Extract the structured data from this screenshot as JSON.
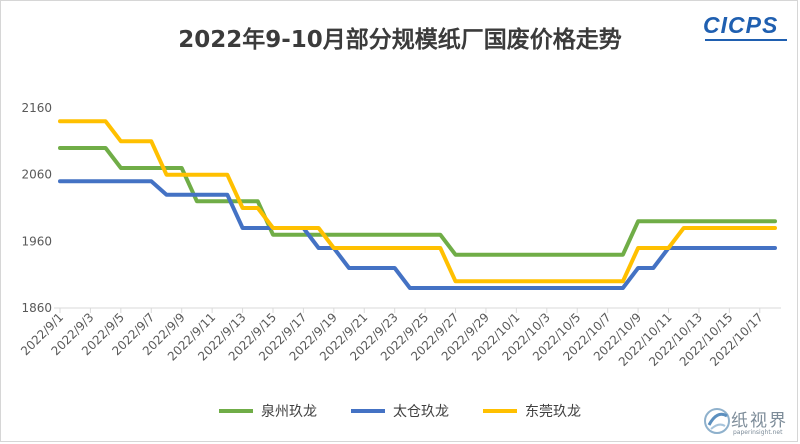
{
  "logo_text": "CICPS",
  "watermark": {
    "text": "纸视界",
    "url": "paperinsight.net"
  },
  "chart_data": {
    "type": "line",
    "title": "2022年9-10月部分规模纸厂国废价格走势",
    "xlabel": "",
    "ylabel": "",
    "ylim": [
      1860,
      2160
    ],
    "yticks": [
      1860,
      1960,
      2060,
      2160
    ],
    "grid": false,
    "legend_position": "bottom",
    "x": [
      "2022/9/1",
      "2022/9/2",
      "2022/9/3",
      "2022/9/4",
      "2022/9/5",
      "2022/9/6",
      "2022/9/7",
      "2022/9/8",
      "2022/9/9",
      "2022/9/10",
      "2022/9/11",
      "2022/9/12",
      "2022/9/13",
      "2022/9/14",
      "2022/9/15",
      "2022/9/16",
      "2022/9/17",
      "2022/9/18",
      "2022/9/19",
      "2022/9/20",
      "2022/9/21",
      "2022/9/22",
      "2022/9/23",
      "2022/9/24",
      "2022/9/25",
      "2022/9/26",
      "2022/9/27",
      "2022/9/28",
      "2022/9/29",
      "2022/9/30",
      "2022/10/1",
      "2022/10/2",
      "2022/10/3",
      "2022/10/4",
      "2022/10/5",
      "2022/10/6",
      "2022/10/7",
      "2022/10/8",
      "2022/10/9",
      "2022/10/10",
      "2022/10/11",
      "2022/10/12",
      "2022/10/13",
      "2022/10/14",
      "2022/10/15",
      "2022/10/16",
      "2022/10/17",
      "2022/10/18"
    ],
    "x_tick_labels": [
      "2022/9/1",
      "2022/9/3",
      "2022/9/5",
      "2022/9/7",
      "2022/9/9",
      "2022/9/11",
      "2022/9/13",
      "2022/9/15",
      "2022/9/17",
      "2022/9/19",
      "2022/9/21",
      "2022/9/23",
      "2022/9/25",
      "2022/9/27",
      "2022/9/29",
      "2022/10/1",
      "2022/10/3",
      "2022/10/5",
      "2022/10/7",
      "2022/10/9",
      "2022/10/11",
      "2022/10/13",
      "2022/10/15",
      "2022/10/17"
    ],
    "series": [
      {
        "name": "泉州玖龙",
        "color": "#70ad47",
        "values": [
          2100,
          2100,
          2100,
          2100,
          2070,
          2070,
          2070,
          2070,
          2070,
          2020,
          2020,
          2020,
          2020,
          2020,
          1970,
          1970,
          1970,
          1970,
          1970,
          1970,
          1970,
          1970,
          1970,
          1970,
          1970,
          1970,
          1940,
          1940,
          1940,
          1940,
          1940,
          1940,
          1940,
          1940,
          1940,
          1940,
          1940,
          1940,
          1990,
          1990,
          1990,
          1990,
          1990,
          1990,
          1990,
          1990,
          1990,
          1990
        ]
      },
      {
        "name": "太仓玖龙",
        "color": "#4472c4",
        "values": [
          2050,
          2050,
          2050,
          2050,
          2050,
          2050,
          2050,
          2030,
          2030,
          2030,
          2030,
          2030,
          1980,
          1980,
          1980,
          1980,
          1980,
          1950,
          1950,
          1920,
          1920,
          1920,
          1920,
          1890,
          1890,
          1890,
          1890,
          1890,
          1890,
          1890,
          1890,
          1890,
          1890,
          1890,
          1890,
          1890,
          1890,
          1890,
          1920,
          1920,
          1950,
          1950,
          1950,
          1950,
          1950,
          1950,
          1950,
          1950
        ]
      },
      {
        "name": "东莞玖龙",
        "color": "#ffc000",
        "values": [
          2140,
          2140,
          2140,
          2140,
          2110,
          2110,
          2110,
          2060,
          2060,
          2060,
          2060,
          2060,
          2010,
          2010,
          1980,
          1980,
          1980,
          1980,
          1950,
          1950,
          1950,
          1950,
          1950,
          1950,
          1950,
          1950,
          1900,
          1900,
          1900,
          1900,
          1900,
          1900,
          1900,
          1900,
          1900,
          1900,
          1900,
          1900,
          1950,
          1950,
          1950,
          1980,
          1980,
          1980,
          1980,
          1980,
          1980,
          1980
        ]
      }
    ]
  }
}
